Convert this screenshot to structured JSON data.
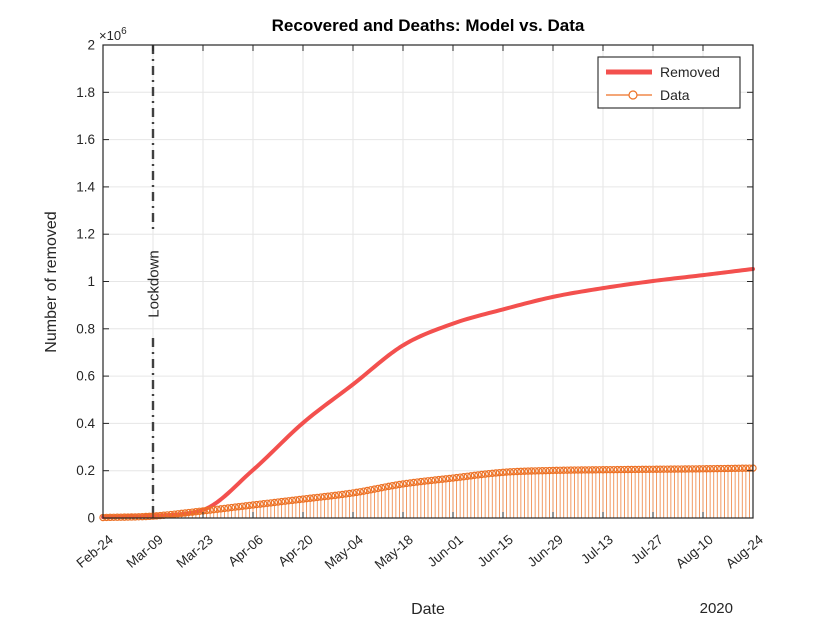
{
  "figure": {
    "title": "Recovered and Deaths: Model vs. Data",
    "xlabel": "Date",
    "ylabel": "Number of removed",
    "year_label": "2020",
    "y_multiplier": "×10",
    "y_exponent": "6"
  },
  "legend": {
    "position": "northeast",
    "items": [
      {
        "label": "Removed",
        "type": "thick-line",
        "color": "#f3504e"
      },
      {
        "label": "Data",
        "type": "line-with-circle-marker",
        "color": "#ed7226"
      }
    ]
  },
  "annotation": {
    "lockdown_label": "Lockdown"
  },
  "colors": {
    "model_red": "#f3504e",
    "data_orange": "#ed7226",
    "lockdown_gray": "#404040",
    "grid_gray": "#e6e6e6",
    "axis_dark": "#262626",
    "background": "#ffffff"
  },
  "chart_data": {
    "type": "line+stem",
    "title": "Recovered and Deaths: Model vs. Data",
    "xlabel": "Date",
    "ylabel": "Number of removed",
    "year": "2020",
    "grid": true,
    "legend_position": "northeast",
    "x_tick_labels": [
      "Feb-24",
      "Mar-09",
      "Mar-23",
      "Apr-06",
      "Apr-20",
      "May-04",
      "May-18",
      "Jun-01",
      "Jun-15",
      "Jun-29",
      "Jul-13",
      "Jul-27",
      "Aug-10",
      "Aug-24"
    ],
    "x_tick_days": [
      0,
      14,
      28,
      42,
      56,
      70,
      84,
      98,
      112,
      126,
      140,
      154,
      168,
      182
    ],
    "xlim_days": [
      0,
      182
    ],
    "y_tick_labels": [
      "0",
      "0.2",
      "0.4",
      "0.6",
      "0.8",
      "1",
      "1.2",
      "1.4",
      "1.6",
      "1.8",
      "2"
    ],
    "y_ticks_millions": [
      0,
      0.2,
      0.4,
      0.6,
      0.8,
      1,
      1.2,
      1.4,
      1.6,
      1.8,
      2
    ],
    "ylim_millions": [
      0,
      2
    ],
    "y_scale_factor": "1e6",
    "annotations": [
      {
        "type": "vertical-line",
        "label": "Lockdown",
        "day": 14,
        "date": "Mar-09",
        "line_style": "dash-dot",
        "color": "#404040"
      }
    ],
    "series": [
      {
        "name": "Removed",
        "role": "model",
        "type": "line",
        "color": "#f3504e",
        "line_width": 4,
        "points_day_vs_millions": [
          [
            0,
            0.004
          ],
          [
            14,
            0.01
          ],
          [
            28,
            0.034
          ],
          [
            42,
            0.203
          ],
          [
            56,
            0.402
          ],
          [
            70,
            0.565
          ],
          [
            84,
            0.73
          ],
          [
            98,
            0.822
          ],
          [
            112,
            0.882
          ],
          [
            126,
            0.935
          ],
          [
            140,
            0.972
          ],
          [
            154,
            1.002
          ],
          [
            168,
            1.027
          ],
          [
            182,
            1.053
          ]
        ]
      },
      {
        "name": "Data",
        "role": "observations",
        "type": "stem",
        "marker": "hollow-circle",
        "color": "#ed7226",
        "daily_stems": true,
        "points_day_vs_millions": [
          [
            0,
            0.002
          ],
          [
            14,
            0.008
          ],
          [
            28,
            0.03
          ],
          [
            42,
            0.055
          ],
          [
            56,
            0.08
          ],
          [
            70,
            0.106
          ],
          [
            84,
            0.144
          ],
          [
            98,
            0.169
          ],
          [
            112,
            0.193
          ],
          [
            126,
            0.201
          ],
          [
            140,
            0.204
          ],
          [
            154,
            0.206
          ],
          [
            168,
            0.208
          ],
          [
            182,
            0.211
          ]
        ]
      }
    ]
  }
}
